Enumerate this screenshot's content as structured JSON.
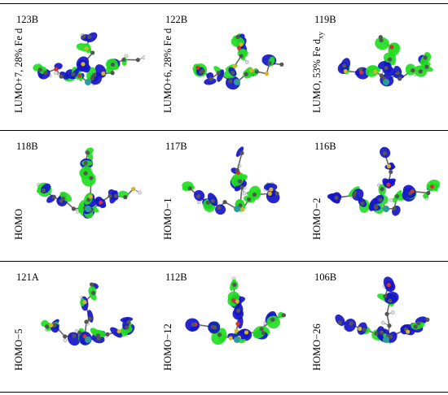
{
  "figure": {
    "panels": [
      {
        "id": "123B",
        "label": "LUMO+7, 28% Fe d",
        "label_sub": ""
      },
      {
        "id": "122B",
        "label": "LUMO+6, 28% Fe d",
        "label_sub": ""
      },
      {
        "id": "119B",
        "label": "LUMO, 53% Fe d",
        "label_sub": "xy"
      },
      {
        "id": "118B",
        "label": "HOMO",
        "label_sub": ""
      },
      {
        "id": "117B",
        "label": "HOMO−1",
        "label_sub": ""
      },
      {
        "id": "116B",
        "label": "HOMO−2",
        "label_sub": ""
      },
      {
        "id": "121A",
        "label": "HOMO−5",
        "label_sub": ""
      },
      {
        "id": "112B",
        "label": "HOMO−12",
        "label_sub": ""
      },
      {
        "id": "106B",
        "label": "HOMO−26",
        "label_sub": ""
      }
    ]
  },
  "colors": {
    "lobe_positive": "#22dd22",
    "lobe_negative": "#1515c8",
    "iron": "#2d9b9b",
    "sulfur": "#d4b42a",
    "carbon": "#555555",
    "hydrogen": "#dddddd",
    "oxygen": "#d33333",
    "bond": "#666666"
  }
}
